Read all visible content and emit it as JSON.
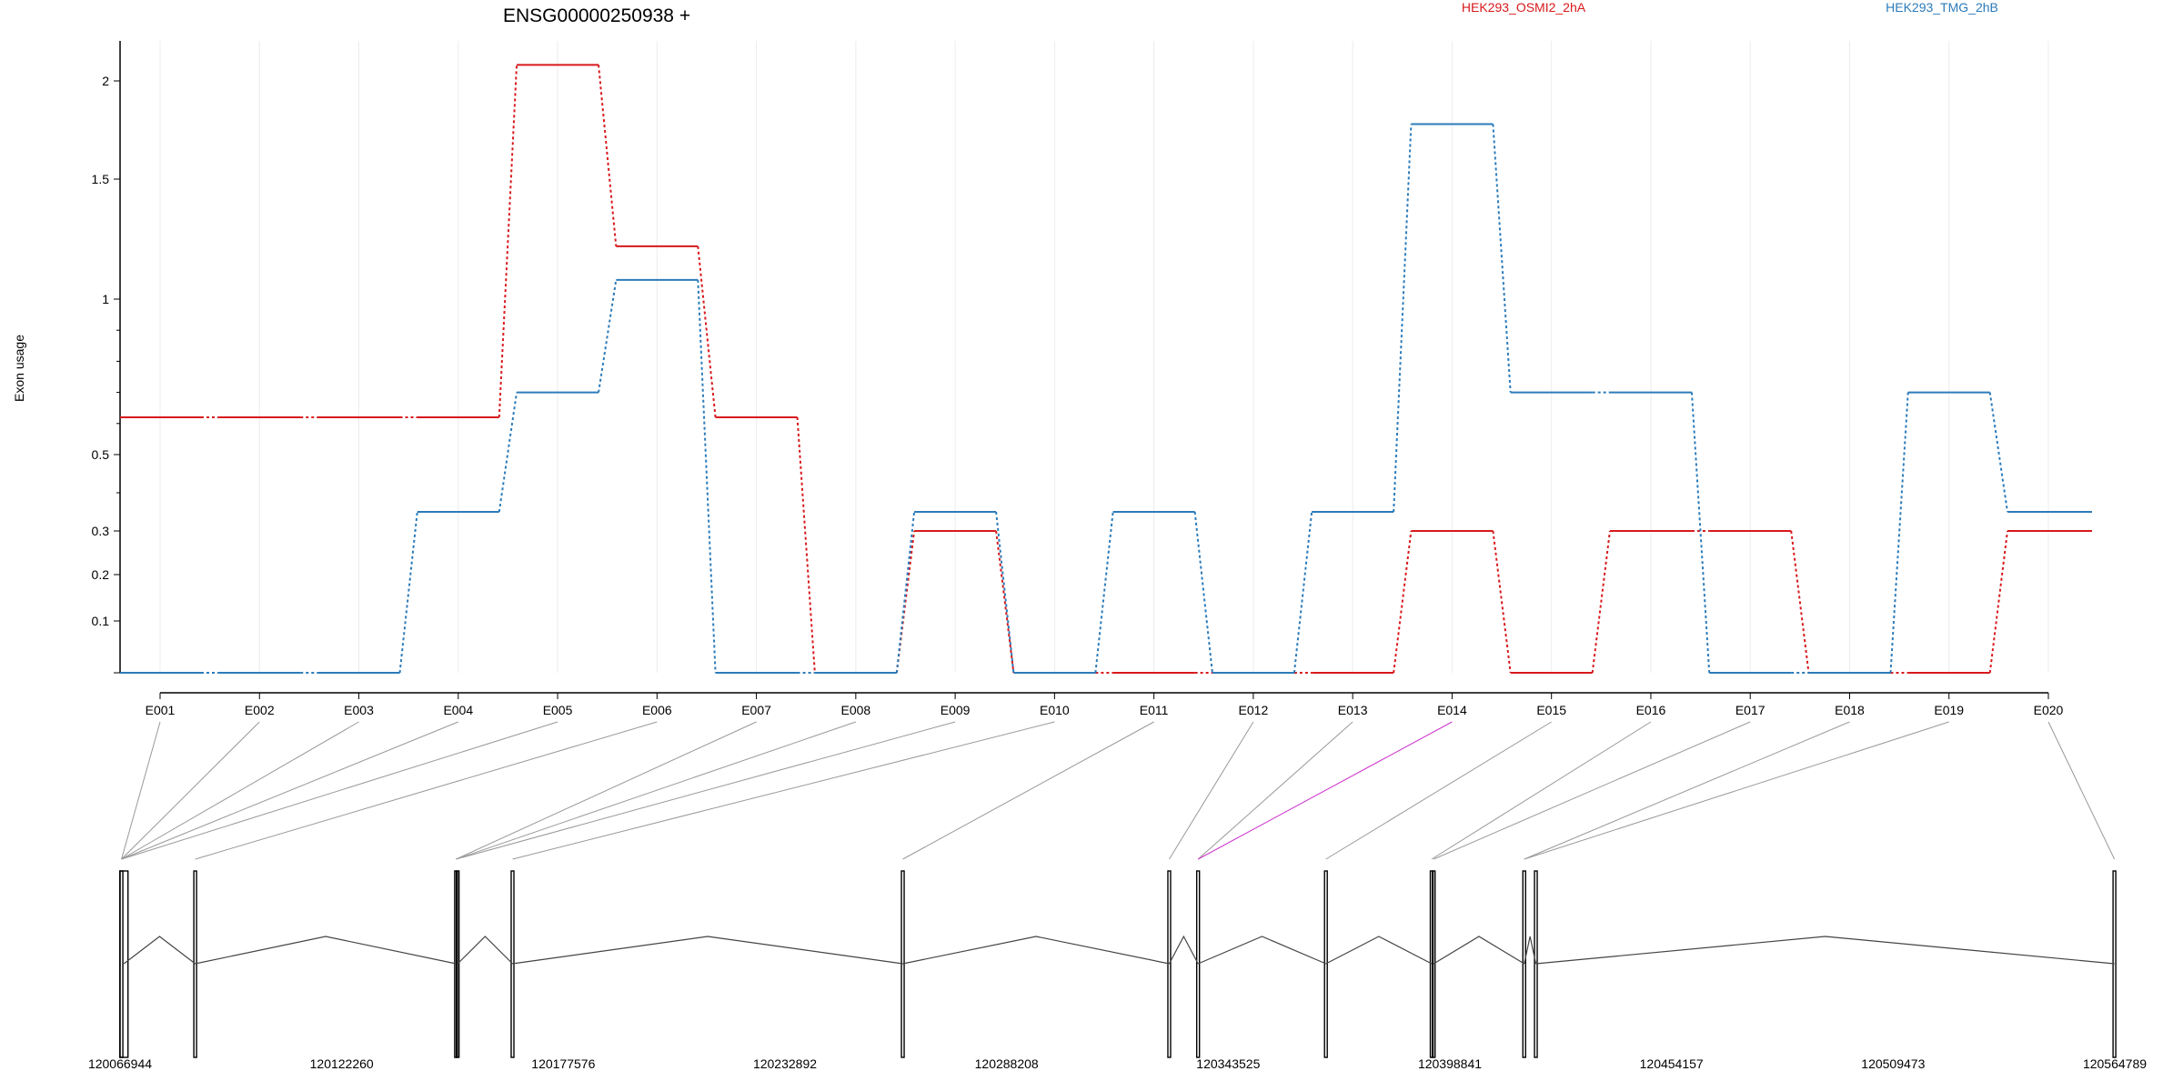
{
  "chart_data": {
    "type": "line",
    "title": "ENSG00000250938 +",
    "ylabel": "Exon usage",
    "xlabel": "",
    "grid": true,
    "legend_placement": "top-right",
    "y_ticks": [
      "2",
      "1.5",
      "1",
      "0.5",
      "0.3",
      "0.2",
      "0.1"
    ],
    "categories": [
      "E001",
      "E002",
      "E003",
      "E004",
      "E005",
      "E006",
      "E007",
      "E008",
      "E009",
      "E010",
      "E011",
      "E012",
      "E013",
      "E014",
      "E015",
      "E016",
      "E017",
      "E018",
      "E019",
      "E020"
    ],
    "series": [
      {
        "name": "HEK293_OSMI2_2hA",
        "color": "#d7191c",
        "values": [
          0.62,
          0.62,
          0.62,
          0.62,
          2.08,
          1.22,
          0.62,
          0.0,
          0.3,
          0.0,
          0.0,
          0.0,
          0.0,
          0.3,
          0.0,
          0.3,
          0.3,
          0.0,
          0.0,
          0.3
        ]
      },
      {
        "name": "HEK293_TMG_2hB",
        "color": "#2b7bba",
        "values": [
          0.0,
          0.0,
          0.0,
          0.35,
          0.7,
          1.08,
          0.0,
          0.0,
          0.35,
          0.0,
          0.35,
          0.0,
          0.35,
          1.78,
          0.7,
          0.7,
          0.0,
          0.0,
          0.7,
          0.35
        ]
      }
    ],
    "genomic_axis_labels": [
      "120066944",
      "120122260",
      "120177576",
      "120232892",
      "120288208",
      "120343525",
      "120398841",
      "120454157",
      "120509473",
      "120564789"
    ],
    "genomic_range": [
      120066944,
      120564789
    ],
    "exon_coordinates": [
      120067300,
      120067900,
      120085700,
      120150800,
      120151200,
      120164900,
      120262300,
      120328800,
      120336000,
      120367900,
      120394300,
      120394800,
      120417400,
      120420300,
      120564700
    ],
    "exon_connectors": [
      [
        0,
        0
      ],
      [
        1,
        0
      ],
      [
        2,
        0
      ],
      [
        3,
        0
      ],
      [
        4,
        0
      ],
      [
        5,
        2
      ],
      [
        6,
        3
      ],
      [
        7,
        3
      ],
      [
        8,
        3
      ],
      [
        9,
        5
      ],
      [
        10,
        6
      ],
      [
        11,
        7
      ],
      [
        12,
        8
      ],
      [
        13,
        8
      ],
      [
        14,
        9
      ],
      [
        15,
        10
      ],
      [
        16,
        11
      ],
      [
        17,
        12
      ],
      [
        18,
        12
      ],
      [
        19,
        14
      ]
    ],
    "highlight_connector": 13,
    "highlight_color": "#cc33cc"
  }
}
